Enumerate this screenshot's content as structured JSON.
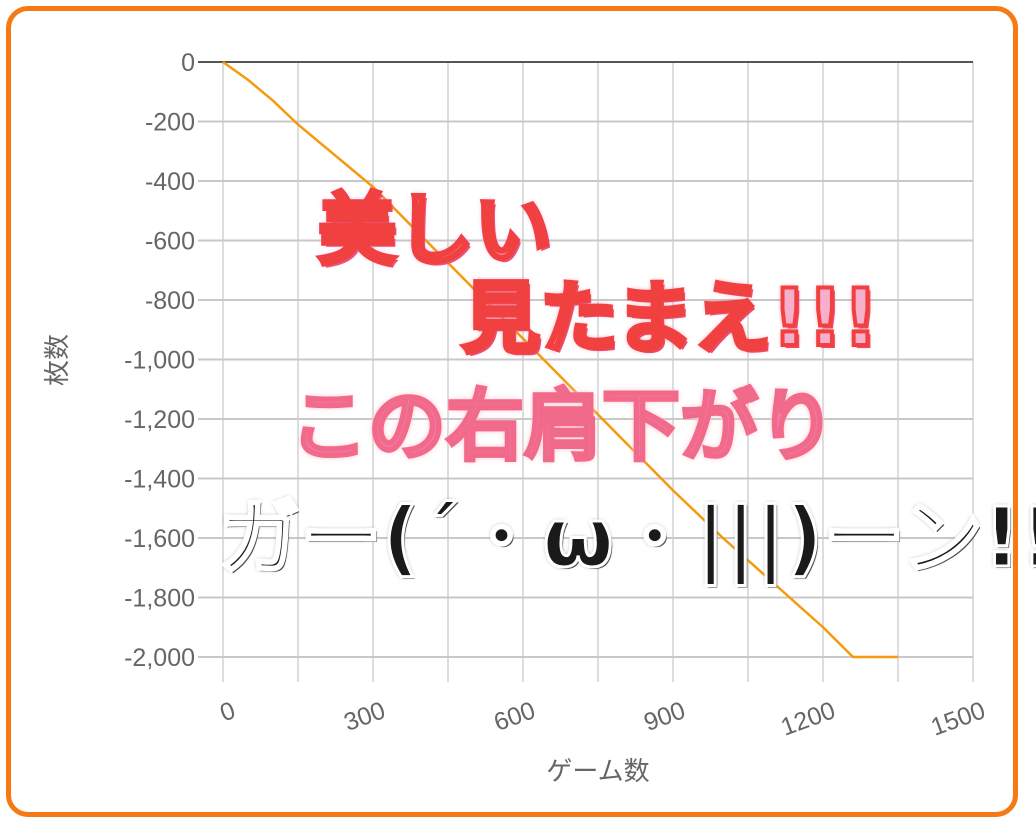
{
  "chart_data": {
    "type": "line",
    "xlabel": "ゲーム数",
    "ylabel": "枚数",
    "xlim": [
      0,
      1500
    ],
    "ylim": [
      -2000,
      0
    ],
    "x_ticks": [
      "0",
      "300",
      "600",
      "900",
      "1200",
      "1500"
    ],
    "y_ticks": [
      "0",
      "-200",
      "-400",
      "-600",
      "-800",
      "-1,000",
      "-1,200",
      "-1,400",
      "-1,600",
      "-1,800",
      "-2,000"
    ],
    "grid": true,
    "series": [
      {
        "color": "#f59a0c",
        "x": [
          0,
          50,
          100,
          150,
          200,
          250,
          300,
          400,
          500,
          600,
          700,
          800,
          900,
          1000,
          1100,
          1200,
          1260,
          1350
        ],
        "y": [
          0,
          -60,
          -130,
          -210,
          -280,
          -350,
          -420,
          -590,
          -760,
          -930,
          -1100,
          -1270,
          -1440,
          -1600,
          -1750,
          -1900,
          -2000,
          -2000
        ]
      }
    ]
  },
  "overlay": {
    "line1": "美しい",
    "line2": "見たまえ!!!",
    "line3": "この右肩下がり",
    "line4": "ガー(´・ω・|||)ーン!!"
  },
  "colors": {
    "frame": "#f57a14",
    "line": "#f59a0c"
  }
}
